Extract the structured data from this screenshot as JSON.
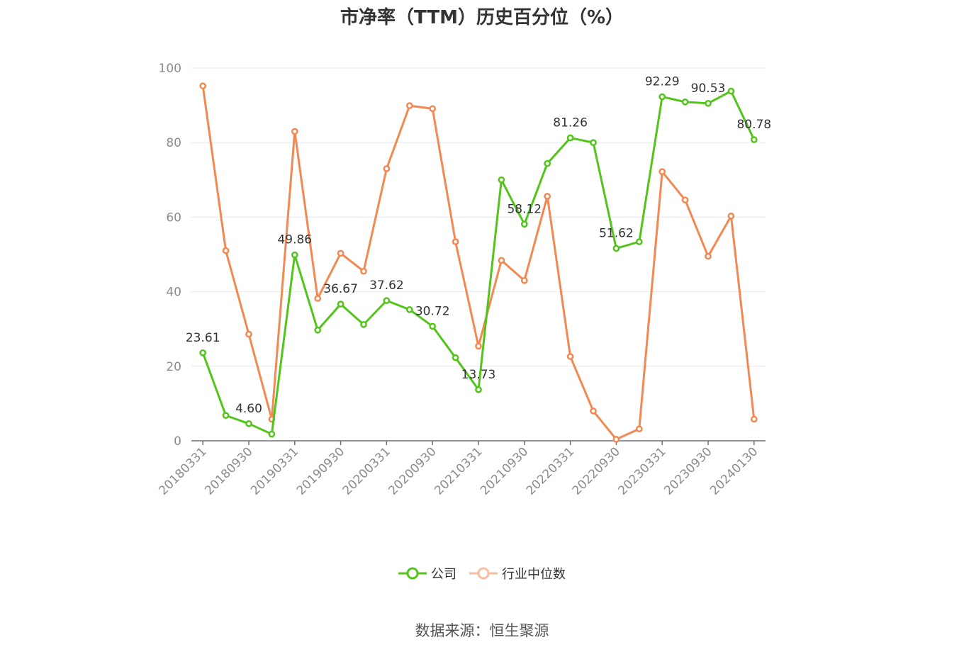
{
  "title": "市净率（TTM）历史百分位（%）",
  "source": "数据来源：恒生聚源",
  "colors": {
    "company": "#52c41a",
    "industry": "#f28852",
    "industry_legend": "#f9bda2",
    "grid": "#e6e8ef",
    "axis": "#6e7079",
    "tick_label": "#8c8c8c",
    "data_label": "#333333"
  },
  "chart_data": {
    "type": "line",
    "title": "市净率（TTM）历史百分位（%）",
    "xlabel": "",
    "ylabel": "",
    "ylim": [
      0,
      100
    ],
    "yticks": [
      0,
      20,
      40,
      60,
      80,
      100
    ],
    "grid": true,
    "legend_position": "bottom",
    "x": [
      "20180331",
      "20180630",
      "20180930",
      "20181231",
      "20190331",
      "20190630",
      "20190930",
      "20191231",
      "20200331",
      "20200630",
      "20200930",
      "20201231",
      "20210331",
      "20210630",
      "20210930",
      "20211231",
      "20220331",
      "20220630",
      "20220930",
      "20221231",
      "20230331",
      "20230630",
      "20230930",
      "20231231",
      "20240130"
    ],
    "xtick_labels": [
      "20180331",
      "20180930",
      "20190331",
      "20190930",
      "20200331",
      "20200930",
      "20210331",
      "20210930",
      "20220331",
      "20220930",
      "20230331",
      "20230930",
      "20240130"
    ],
    "series": [
      {
        "name": "公司",
        "values": [
          23.61,
          6.8,
          4.6,
          1.8,
          49.86,
          29.7,
          36.67,
          31.2,
          37.62,
          35.2,
          30.72,
          22.3,
          13.73,
          70.0,
          58.12,
          74.4,
          81.26,
          80.0,
          51.62,
          53.4,
          92.29,
          90.9,
          90.53,
          93.8,
          80.78
        ],
        "labels": [
          "23.61",
          null,
          "4.60",
          null,
          "49.86",
          null,
          "36.67",
          null,
          "37.62",
          null,
          "30.72",
          null,
          "13.73",
          null,
          "58.12",
          null,
          "81.26",
          null,
          "51.62",
          null,
          "92.29",
          null,
          "90.53",
          null,
          "80.78"
        ]
      },
      {
        "name": "行业中位数",
        "values": [
          95.2,
          51.0,
          28.6,
          5.8,
          83.0,
          38.2,
          50.3,
          45.5,
          73.0,
          89.9,
          89.1,
          53.4,
          25.4,
          48.4,
          43.0,
          65.6,
          22.6,
          8.0,
          0.4,
          3.2,
          72.2,
          64.6,
          49.5,
          60.3,
          5.8
        ]
      }
    ]
  }
}
